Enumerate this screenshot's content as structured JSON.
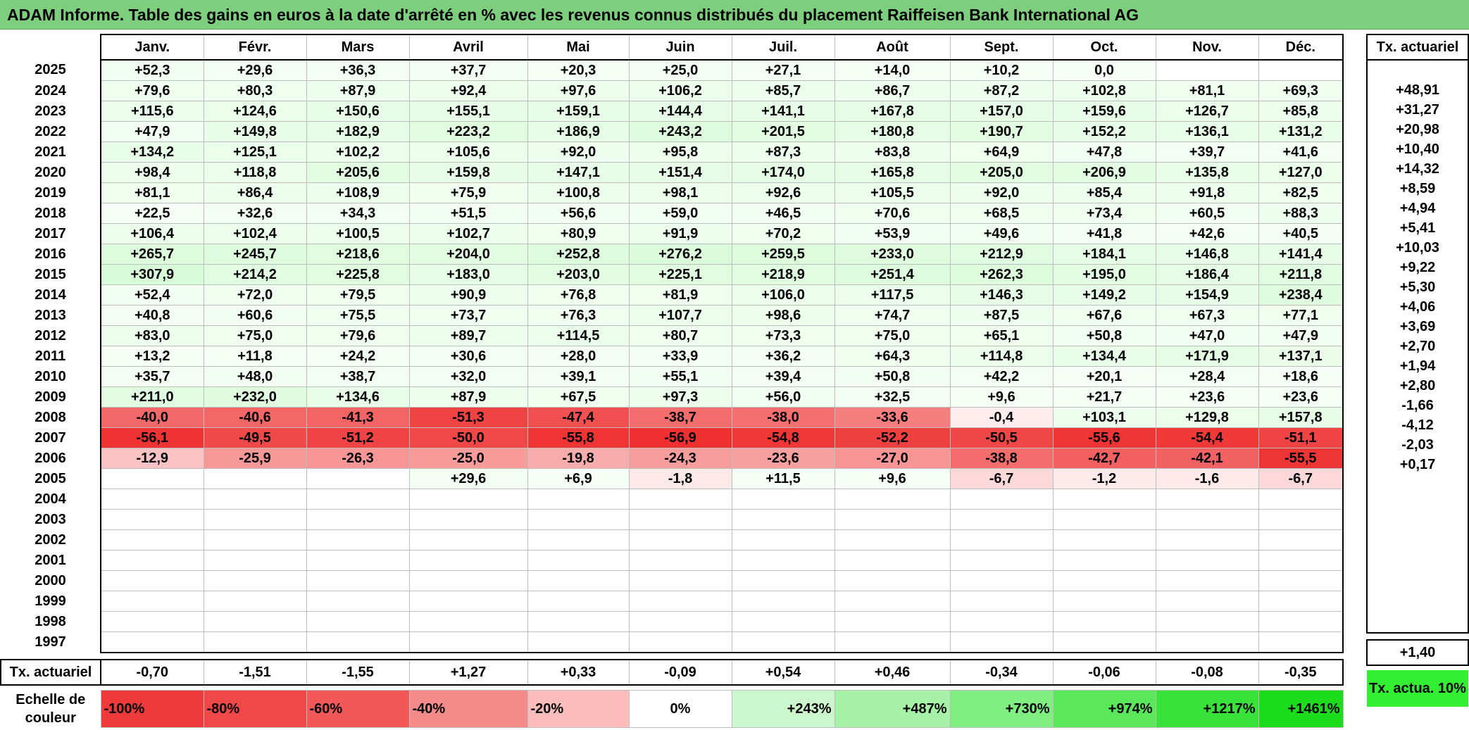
{
  "title": "ADAM Informe. Table des gains en euros à la date d'arrêté en % avec les revenus connus distribués du placement Raiffeisen Bank International AG",
  "months": [
    "Janv.",
    "Févr.",
    "Mars",
    "Avril",
    "Mai",
    "Juin",
    "Juil.",
    "Août",
    "Sept.",
    "Oct.",
    "Nov.",
    "Déc."
  ],
  "side_header": "Tx. actuariel",
  "rows": [
    {
      "year": "2025",
      "values": [
        "+52,3",
        "+29,6",
        "+36,3",
        "+37,7",
        "+20,3",
        "+25,0",
        "+27,1",
        "+14,0",
        "+10,2",
        "0,0",
        "",
        ""
      ],
      "rate": ""
    },
    {
      "year": "2024",
      "values": [
        "+79,6",
        "+80,3",
        "+87,9",
        "+92,4",
        "+97,6",
        "+106,2",
        "+85,7",
        "+86,7",
        "+87,2",
        "+102,8",
        "+81,1",
        "+69,3"
      ],
      "rate": "+48,91"
    },
    {
      "year": "2023",
      "values": [
        "+115,6",
        "+124,6",
        "+150,6",
        "+155,1",
        "+159,1",
        "+144,4",
        "+141,1",
        "+167,8",
        "+157,0",
        "+159,6",
        "+126,7",
        "+85,8"
      ],
      "rate": "+31,27"
    },
    {
      "year": "2022",
      "values": [
        "+47,9",
        "+149,8",
        "+182,9",
        "+223,2",
        "+186,9",
        "+243,2",
        "+201,5",
        "+180,8",
        "+190,7",
        "+152,2",
        "+136,1",
        "+131,2"
      ],
      "rate": "+20,98"
    },
    {
      "year": "2021",
      "values": [
        "+134,2",
        "+125,1",
        "+102,2",
        "+105,6",
        "+92,0",
        "+95,8",
        "+87,3",
        "+83,8",
        "+64,9",
        "+47,8",
        "+39,7",
        "+41,6"
      ],
      "rate": "+10,40"
    },
    {
      "year": "2020",
      "values": [
        "+98,4",
        "+118,8",
        "+205,6",
        "+159,8",
        "+147,1",
        "+151,4",
        "+174,0",
        "+165,8",
        "+205,0",
        "+206,9",
        "+135,8",
        "+127,0"
      ],
      "rate": "+14,32"
    },
    {
      "year": "2019",
      "values": [
        "+81,1",
        "+86,4",
        "+108,9",
        "+75,9",
        "+100,8",
        "+98,1",
        "+92,6",
        "+105,5",
        "+92,0",
        "+85,4",
        "+91,8",
        "+82,5"
      ],
      "rate": "+8,59"
    },
    {
      "year": "2018",
      "values": [
        "+22,5",
        "+32,6",
        "+34,3",
        "+51,5",
        "+56,6",
        "+59,0",
        "+46,5",
        "+70,6",
        "+68,5",
        "+73,4",
        "+60,5",
        "+88,3"
      ],
      "rate": "+4,94"
    },
    {
      "year": "2017",
      "values": [
        "+106,4",
        "+102,4",
        "+100,5",
        "+102,7",
        "+80,9",
        "+91,9",
        "+70,2",
        "+53,9",
        "+49,6",
        "+41,8",
        "+42,6",
        "+40,5"
      ],
      "rate": "+5,41"
    },
    {
      "year": "2016",
      "values": [
        "+265,7",
        "+245,7",
        "+218,6",
        "+204,0",
        "+252,8",
        "+276,2",
        "+259,5",
        "+233,0",
        "+212,9",
        "+184,1",
        "+146,8",
        "+141,4"
      ],
      "rate": "+10,03"
    },
    {
      "year": "2015",
      "values": [
        "+307,9",
        "+214,2",
        "+225,8",
        "+183,0",
        "+203,0",
        "+225,1",
        "+218,9",
        "+251,4",
        "+262,3",
        "+195,0",
        "+186,4",
        "+211,8"
      ],
      "rate": "+9,22"
    },
    {
      "year": "2014",
      "values": [
        "+52,4",
        "+72,0",
        "+79,5",
        "+90,9",
        "+76,8",
        "+81,9",
        "+106,0",
        "+117,5",
        "+146,3",
        "+149,2",
        "+154,9",
        "+238,4"
      ],
      "rate": "+5,30"
    },
    {
      "year": "2013",
      "values": [
        "+40,8",
        "+60,6",
        "+75,5",
        "+73,7",
        "+76,3",
        "+107,7",
        "+98,6",
        "+74,7",
        "+87,5",
        "+67,6",
        "+67,3",
        "+77,1"
      ],
      "rate": "+4,06"
    },
    {
      "year": "2012",
      "values": [
        "+83,0",
        "+75,0",
        "+79,6",
        "+89,7",
        "+114,5",
        "+80,7",
        "+73,3",
        "+75,0",
        "+65,1",
        "+50,8",
        "+47,0",
        "+47,9"
      ],
      "rate": "+3,69"
    },
    {
      "year": "2011",
      "values": [
        "+13,2",
        "+11,8",
        "+24,2",
        "+30,6",
        "+28,0",
        "+33,9",
        "+36,2",
        "+64,3",
        "+114,8",
        "+134,4",
        "+171,9",
        "+137,1"
      ],
      "rate": "+2,70"
    },
    {
      "year": "2010",
      "values": [
        "+35,7",
        "+48,0",
        "+38,7",
        "+32,0",
        "+39,1",
        "+55,1",
        "+39,4",
        "+50,8",
        "+42,2",
        "+20,1",
        "+28,4",
        "+18,6"
      ],
      "rate": "+1,94"
    },
    {
      "year": "2009",
      "values": [
        "+211,0",
        "+232,0",
        "+134,6",
        "+87,9",
        "+67,5",
        "+97,3",
        "+56,0",
        "+32,5",
        "+9,6",
        "+21,7",
        "+23,6",
        "+23,6"
      ],
      "rate": "+2,80"
    },
    {
      "year": "2008",
      "values": [
        "-40,0",
        "-40,6",
        "-41,3",
        "-51,3",
        "-47,4",
        "-38,7",
        "-38,0",
        "-33,6",
        "-0,4",
        "+103,1",
        "+129,8",
        "+157,8"
      ],
      "rate": "-1,66"
    },
    {
      "year": "2007",
      "values": [
        "-56,1",
        "-49,5",
        "-51,2",
        "-50,0",
        "-55,8",
        "-56,9",
        "-54,8",
        "-52,2",
        "-50,5",
        "-55,6",
        "-54,4",
        "-51,1"
      ],
      "rate": "-4,12"
    },
    {
      "year": "2006",
      "values": [
        "-12,9",
        "-25,9",
        "-26,3",
        "-25,0",
        "-19,8",
        "-24,3",
        "-23,6",
        "-27,0",
        "-38,8",
        "-42,7",
        "-42,1",
        "-55,5"
      ],
      "rate": "-2,03"
    },
    {
      "year": "2005",
      "values": [
        "",
        "",
        "",
        "+29,6",
        "+6,9",
        "-1,8",
        "+11,5",
        "+9,6",
        "-6,7",
        "-1,2",
        "-1,6",
        "-6,7"
      ],
      "rate": "+0,17"
    },
    {
      "year": "2004",
      "values": [
        "",
        "",
        "",
        "",
        "",
        "",
        "",
        "",
        "",
        "",
        "",
        ""
      ],
      "rate": ""
    },
    {
      "year": "2003",
      "values": [
        "",
        "",
        "",
        "",
        "",
        "",
        "",
        "",
        "",
        "",
        "",
        ""
      ],
      "rate": ""
    },
    {
      "year": "2002",
      "values": [
        "",
        "",
        "",
        "",
        "",
        "",
        "",
        "",
        "",
        "",
        "",
        ""
      ],
      "rate": ""
    },
    {
      "year": "2001",
      "values": [
        "",
        "",
        "",
        "",
        "",
        "",
        "",
        "",
        "",
        "",
        "",
        ""
      ],
      "rate": ""
    },
    {
      "year": "2000",
      "values": [
        "",
        "",
        "",
        "",
        "",
        "",
        "",
        "",
        "",
        "",
        "",
        ""
      ],
      "rate": ""
    },
    {
      "year": "1999",
      "values": [
        "",
        "",
        "",
        "",
        "",
        "",
        "",
        "",
        "",
        "",
        "",
        ""
      ],
      "rate": ""
    },
    {
      "year": "1998",
      "values": [
        "",
        "",
        "",
        "",
        "",
        "",
        "",
        "",
        "",
        "",
        "",
        ""
      ],
      "rate": ""
    },
    {
      "year": "1997",
      "values": [
        "",
        "",
        "",
        "",
        "",
        "",
        "",
        "",
        "",
        "",
        "",
        ""
      ],
      "rate": ""
    }
  ],
  "annual": {
    "label": "Tx. actuariel",
    "values": [
      "-0,70",
      "-1,51",
      "-1,55",
      "+1,27",
      "+0,33",
      "-0,09",
      "+0,54",
      "+0,46",
      "-0,34",
      "-0,06",
      "-0,08",
      "-0,35"
    ],
    "overall": "+1,40"
  },
  "scale": {
    "label": "Echelle de couleur",
    "steps": [
      "-100%",
      "-80%",
      "-60%",
      "-40%",
      "-20%",
      "0%",
      "+243%",
      "+487%",
      "+730%",
      "+974%",
      "+1217%",
      "+1461%"
    ],
    "step_colors": [
      "#ee3a3a",
      "#f04848",
      "#f25858",
      "#f58a8a",
      "#fbbcbc",
      "#ffffff",
      "#ccf7cc",
      "#a6f2a6",
      "#80ee80",
      "#5ae85a",
      "#38e238",
      "#1cdc1c"
    ],
    "side": "Tx. actua. 10%"
  },
  "colors": {
    "title_bg": "#7dcf7d",
    "positive_max": "#1cdc1c",
    "negative_max": "#ee3a3a"
  }
}
